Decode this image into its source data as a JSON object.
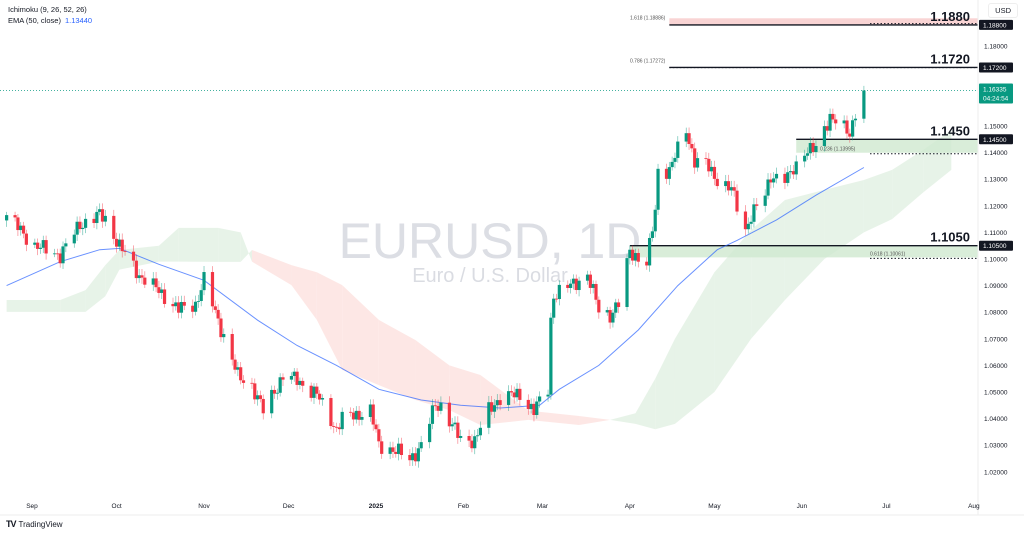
{
  "legend": {
    "ichimoku": "Ichimoku (9, 26, 52, 26)",
    "ema_label": "EMA (50, close)",
    "ema_value": "1.13440"
  },
  "currency": "USD",
  "watermark": {
    "symbol": "EURUSD, 1D",
    "description": "Euro / U.S. Dollar"
  },
  "brand": "TradingView",
  "colors": {
    "up": "#089981",
    "down": "#f23645",
    "ema": "#2962ff",
    "cloud_bull": "#e3f1e4",
    "cloud_bear": "#fde3e1",
    "price_badge": "#089981"
  },
  "chart_data": {
    "type": "candlestick",
    "symbol": "EURUSD",
    "timeframe": "1D",
    "ylim": [
      1.015,
      1.1925
    ],
    "y_ticks": [
      "1.02000",
      "1.03000",
      "1.04000",
      "1.05000",
      "1.06000",
      "1.07000",
      "1.08000",
      "1.09000",
      "1.10000",
      "1.11000",
      "1.12000",
      "1.13000",
      "1.14000",
      "1.15000",
      "1.18000"
    ],
    "x_ticks": [
      {
        "label": "Sep",
        "date": "2024-09-01"
      },
      {
        "label": "Oct",
        "date": "2024-10-01"
      },
      {
        "label": "Nov",
        "date": "2024-11-01"
      },
      {
        "label": "Dec",
        "date": "2024-12-01"
      },
      {
        "label": "2025",
        "date": "2025-01-01"
      },
      {
        "label": "Feb",
        "date": "2025-02-01"
      },
      {
        "label": "Mar",
        "date": "2025-03-01"
      },
      {
        "label": "Apr",
        "date": "2025-04-01"
      },
      {
        "label": "May",
        "date": "2025-05-01"
      },
      {
        "label": "Jun",
        "date": "2025-06-01"
      },
      {
        "label": "Jul",
        "date": "2025-07-01"
      },
      {
        "label": "Aug",
        "date": "2025-08-01"
      }
    ],
    "close_path": [
      [
        "2024-08-23",
        1.1165
      ],
      [
        "2024-09-02",
        1.105
      ],
      [
        "2024-09-11",
        1.1015
      ],
      [
        "2024-09-18",
        1.113
      ],
      [
        "2024-09-25",
        1.1165
      ],
      [
        "2024-09-27",
        1.115
      ],
      [
        "2024-10-02",
        1.105
      ],
      [
        "2024-10-09",
        1.094
      ],
      [
        "2024-10-16",
        1.088
      ],
      [
        "2024-10-23",
        1.081
      ],
      [
        "2024-10-29",
        1.083
      ],
      [
        "2024-11-01",
        1.092
      ],
      [
        "2024-11-06",
        1.077
      ],
      [
        "2024-11-13",
        1.056
      ],
      [
        "2024-11-18",
        1.0525
      ],
      [
        "2024-11-22",
        1.043
      ],
      [
        "2024-11-29",
        1.056
      ],
      [
        "2024-12-04",
        1.0545
      ],
      [
        "2024-12-11",
        1.049
      ],
      [
        "2024-12-18",
        1.036
      ],
      [
        "2024-12-20",
        1.04
      ],
      [
        "2024-12-30",
        1.043
      ],
      [
        "2025-01-02",
        1.03
      ],
      [
        "2025-01-08",
        1.028
      ],
      [
        "2025-01-13",
        1.0245
      ],
      [
        "2025-01-17",
        1.03
      ],
      [
        "2025-01-22",
        1.045
      ],
      [
        "2025-01-24",
        1.045
      ],
      [
        "2025-01-31",
        1.032
      ],
      [
        "2025-02-05",
        1.032
      ],
      [
        "2025-02-10",
        1.043
      ],
      [
        "2025-02-14",
        1.048
      ],
      [
        "2025-02-21",
        1.049
      ],
      [
        "2025-02-26",
        1.043
      ],
      [
        "2025-03-03",
        1.051
      ],
      [
        "2025-03-04",
        1.077
      ],
      [
        "2025-03-05",
        1.0865
      ],
      [
        "2025-03-11",
        1.09
      ],
      [
        "2025-03-17",
        1.094
      ],
      [
        "2025-03-21",
        1.081
      ],
      [
        "2025-03-25",
        1.079
      ],
      [
        "2025-03-28",
        1.083
      ],
      [
        "2025-04-01",
        1.103
      ],
      [
        "2025-04-07",
        1.098
      ],
      [
        "2025-04-10",
        1.118
      ],
      [
        "2025-04-11",
        1.1335
      ],
      [
        "2025-04-15",
        1.1335
      ],
      [
        "2025-04-21",
        1.1485
      ],
      [
        "2025-04-24",
        1.137
      ],
      [
        "2025-04-28",
        1.1355
      ],
      [
        "2025-05-02",
        1.13
      ],
      [
        "2025-05-07",
        1.126
      ],
      [
        "2025-05-12",
        1.111
      ],
      [
        "2025-05-14",
        1.1165
      ],
      [
        "2025-05-19",
        1.124
      ],
      [
        "2025-05-21",
        1.1315
      ],
      [
        "2025-05-27",
        1.13
      ],
      [
        "2025-06-02",
        1.141
      ],
      [
        "2025-06-06",
        1.141
      ],
      [
        "2025-06-11",
        1.154
      ],
      [
        "2025-06-13",
        1.152
      ],
      [
        "2025-06-18",
        1.1465
      ],
      [
        "2025-06-20",
        1.156
      ],
      [
        "2025-06-23",
        1.16335
      ]
    ],
    "ema50": [
      [
        "2024-08-23",
        1.09
      ],
      [
        "2024-09-11",
        1.099
      ],
      [
        "2024-09-25",
        1.1035
      ],
      [
        "2024-10-02",
        1.104
      ],
      [
        "2024-10-16",
        1.098
      ],
      [
        "2024-11-01",
        1.092
      ],
      [
        "2024-11-20",
        1.077
      ],
      [
        "2024-12-04",
        1.0675
      ],
      [
        "2024-12-18",
        1.06
      ],
      [
        "2025-01-02",
        1.051
      ],
      [
        "2025-01-17",
        1.047
      ],
      [
        "2025-01-31",
        1.045
      ],
      [
        "2025-02-14",
        1.044
      ],
      [
        "2025-02-28",
        1.045
      ],
      [
        "2025-03-07",
        1.051
      ],
      [
        "2025-03-21",
        1.06
      ],
      [
        "2025-04-04",
        1.0733
      ],
      [
        "2025-04-18",
        1.09
      ],
      [
        "2025-05-02",
        1.1035
      ],
      [
        "2025-05-09",
        1.107
      ],
      [
        "2025-05-23",
        1.1147
      ],
      [
        "2025-06-06",
        1.124
      ],
      [
        "2025-06-23",
        1.1344
      ]
    ],
    "ichimoku_cloud": [
      [
        "2024-08-23",
        1.0846,
        1.0801
      ],
      [
        "2024-09-11",
        1.0846,
        1.0801
      ],
      [
        "2024-09-20",
        1.0883,
        1.0801
      ],
      [
        "2024-09-27",
        1.0977,
        1.086
      ],
      [
        "2024-10-02",
        1.1034,
        1.096
      ],
      [
        "2024-10-16",
        1.105,
        1.099
      ],
      [
        "2024-10-23",
        1.1117,
        1.099
      ],
      [
        "2024-11-06",
        1.1117,
        1.0989
      ],
      [
        "2024-11-14",
        1.11,
        1.0989
      ],
      [
        "2024-11-18",
        1.099,
        1.1034
      ],
      [
        "2024-12-02",
        1.0902,
        1.0977
      ],
      [
        "2024-12-11",
        1.0771,
        1.095
      ],
      [
        "2024-12-20",
        1.0583,
        1.0902
      ],
      [
        "2025-01-02",
        1.0526,
        1.0771
      ],
      [
        "2025-01-15",
        1.047,
        1.0695
      ],
      [
        "2025-01-27",
        1.0432,
        1.06
      ],
      [
        "2025-02-07",
        1.0376,
        1.0564
      ],
      [
        "2025-02-24",
        1.0395,
        1.043
      ],
      [
        "2025-03-14",
        1.0376,
        1.041
      ],
      [
        "2025-03-25",
        1.0395,
        1.0395
      ],
      [
        "2025-04-03",
        1.042,
        1.038
      ],
      [
        "2025-04-10",
        1.055,
        1.036
      ],
      [
        "2025-04-17",
        1.07,
        1.038
      ],
      [
        "2025-05-01",
        1.095,
        1.05
      ],
      [
        "2025-05-14",
        1.1109,
        1.07
      ],
      [
        "2025-05-26",
        1.1222,
        1.0846
      ],
      [
        "2025-06-09",
        1.126,
        1.1
      ],
      [
        "2025-06-23",
        1.1297,
        1.11
      ],
      [
        "2025-07-03",
        1.1335,
        1.115
      ],
      [
        "2025-07-14",
        1.141,
        1.125
      ],
      [
        "2025-07-24",
        1.1485,
        1.1335
      ]
    ],
    "levels": [
      {
        "label": "1.1880",
        "badge": "1.18800",
        "price": 1.188,
        "zone_to": 1.1905,
        "zone": "red",
        "start": "2025-04-15",
        "fib_label": "1.618 (1.18886)",
        "fib_price": 1.18886
      },
      {
        "label": "1.1720",
        "badge": "1.17200",
        "price": 1.172,
        "start": "2025-04-15",
        "fib_label": "0.786 (1.17272)",
        "fib_price": 1.17272
      },
      {
        "label": "1.1450",
        "badge": "1.14500",
        "price": 1.145,
        "zone_to": 1.13995,
        "zone": "green",
        "start": "2025-05-30",
        "fib_label": "0.236 (1.13995)",
        "fib_price": 1.13995
      },
      {
        "label": "1.1050",
        "badge": "1.10500",
        "price": 1.105,
        "zone_to": 1.10061,
        "zone": "green",
        "start": "2025-04-01",
        "fib_label": "0.618 (1.10061)",
        "fib_price": 1.10061
      }
    ],
    "last_price": {
      "value": 1.16335,
      "label": "1.16335",
      "countdown": "04:24:54"
    }
  }
}
